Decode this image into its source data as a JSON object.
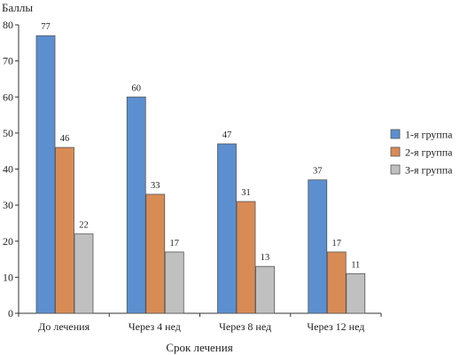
{
  "chart_data": {
    "type": "bar",
    "title": "",
    "xlabel": "Срок лечения",
    "ylabel": "Баллы",
    "ylim": [
      0,
      80
    ],
    "yticks": [
      0,
      10,
      20,
      30,
      40,
      50,
      60,
      70,
      80
    ],
    "grid": false,
    "legend_position": "right",
    "categories": [
      "До лечения",
      "Через 4 нед",
      "Через 8 нед",
      "Через 12 нед"
    ],
    "series": [
      {
        "name": "1-я группа",
        "values": [
          77,
          60,
          47,
          37
        ],
        "color": "#5b8fd0",
        "labels": [
          "77",
          "60",
          "47",
          "37"
        ]
      },
      {
        "name": "2-я группа",
        "values": [
          46,
          33,
          31,
          17
        ],
        "color": "#d98b55",
        "labels": [
          "46",
          "33",
          "31",
          "17"
        ]
      },
      {
        "name": "3-я группа",
        "values": [
          22,
          17,
          13,
          11
        ],
        "color": "#c0c0c0",
        "labels": [
          "22",
          "17",
          "13",
          "11"
        ]
      }
    ]
  }
}
